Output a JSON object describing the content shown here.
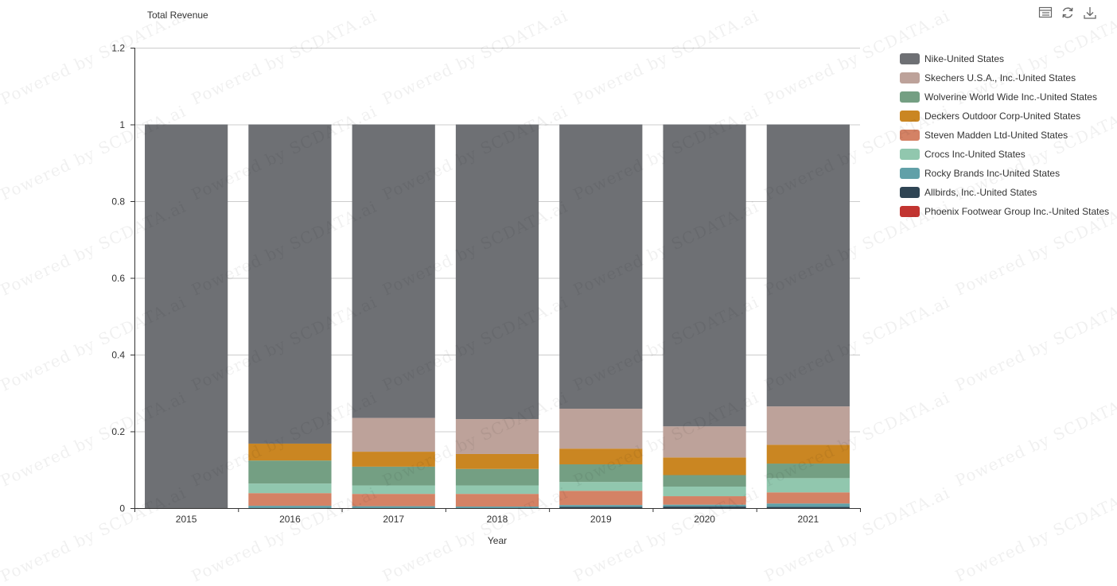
{
  "chart_data": {
    "type": "bar",
    "stacked": true,
    "ylabel": "Total Revenue",
    "xlabel": "Year",
    "ylim": [
      0,
      1.2
    ],
    "yticks": [
      "0",
      "0.2",
      "0.4",
      "0.6",
      "0.8",
      "1",
      "1.2"
    ],
    "categories": [
      "2015",
      "2016",
      "2017",
      "2018",
      "2019",
      "2020",
      "2021"
    ],
    "legend_position": "right",
    "grid": true,
    "series": [
      {
        "name": "Phoenix Footwear Group Inc.-United States",
        "color": "#c23531",
        "values": [
          0,
          0,
          0,
          0,
          0,
          0,
          0
        ]
      },
      {
        "name": "Allbirds, Inc.-United States",
        "color": "#2f4554",
        "values": [
          0,
          0,
          0,
          0,
          0.003,
          0.004,
          0.003
        ]
      },
      {
        "name": "Rocky Brands Inc-United States",
        "color": "#61a0a8",
        "values": [
          0,
          0.006,
          0.005,
          0.004,
          0.005,
          0.005,
          0.009
        ]
      },
      {
        "name": "Steven Madden Ltd-United States",
        "color": "#d48265",
        "values": [
          0,
          0.033,
          0.032,
          0.033,
          0.037,
          0.022,
          0.029
        ]
      },
      {
        "name": "Crocs Inc-United States",
        "color": "#91c7ae",
        "values": [
          0,
          0.025,
          0.022,
          0.022,
          0.023,
          0.025,
          0.037
        ]
      },
      {
        "name": "Wolverine World Wide Inc.-United States",
        "color": "#749f83",
        "values": [
          0,
          0.06,
          0.049,
          0.043,
          0.046,
          0.03,
          0.038
        ]
      },
      {
        "name": "Deckers Outdoor Corp-United States",
        "color": "#ca8622",
        "values": [
          0,
          0.044,
          0.039,
          0.039,
          0.041,
          0.046,
          0.049
        ]
      },
      {
        "name": "Skechers U.S.A., Inc.-United States",
        "color": "#bda29a",
        "values": [
          0,
          0,
          0.088,
          0.091,
          0.104,
          0.081,
          0.1
        ]
      },
      {
        "name": "Nike-United States",
        "color": "#6e7074",
        "values": [
          1,
          0.832,
          0.765,
          0.768,
          0.741,
          0.787,
          0.735
        ]
      }
    ]
  },
  "legend_order": [
    8,
    7,
    5,
    6,
    3,
    4,
    2,
    1,
    0
  ],
  "watermark_text": "Powered by SCDATA.ai",
  "toolbox": {
    "icons": [
      "data-view-icon",
      "restore-icon",
      "save-image-icon"
    ]
  }
}
